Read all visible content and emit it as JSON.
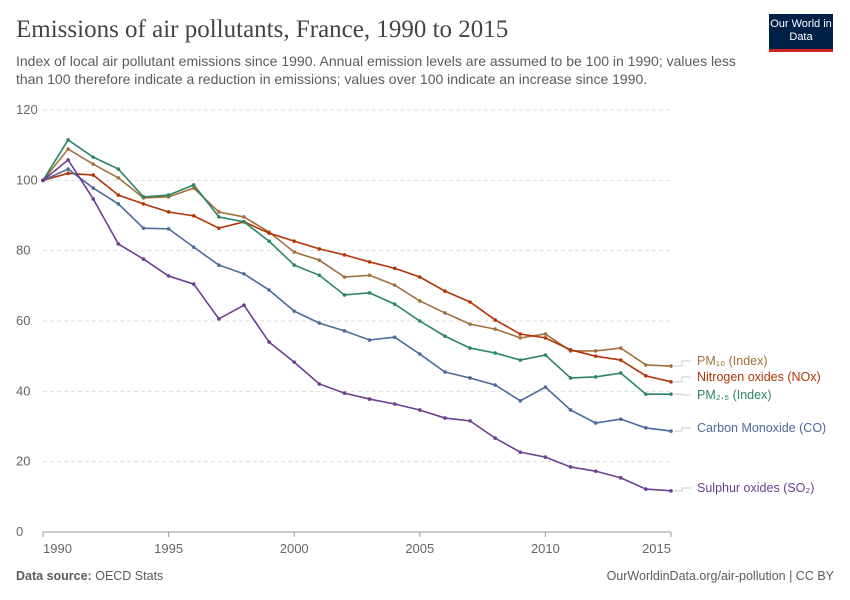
{
  "header": {
    "title": "Emissions of air pollutants, France, 1990 to 2015",
    "subtitle": "Index of local air pollutant emissions since 1990. Annual emission levels are assumed to be 100 in 1990; values less than 100 therefore indicate a reduction in emissions; values over 100 indicate an increase since 1990.",
    "logo": "Our World in Data"
  },
  "footer": {
    "source_label": "Data source:",
    "source": "OECD Stats",
    "credit": "OurWorldinData.org/air-pollution | CC BY"
  },
  "chart_data": {
    "type": "line",
    "x": [
      1990,
      1991,
      1992,
      1993,
      1994,
      1995,
      1996,
      1997,
      1998,
      1999,
      2000,
      2001,
      2002,
      2003,
      2004,
      2005,
      2006,
      2007,
      2008,
      2009,
      2010,
      2011,
      2012,
      2013,
      2014,
      2015
    ],
    "xlim": [
      1990,
      2015
    ],
    "ylim": [
      0,
      120
    ],
    "xticks": [
      1990,
      1995,
      2000,
      2005,
      2010,
      2015
    ],
    "yticks": [
      0,
      20,
      40,
      60,
      80,
      100,
      120
    ],
    "grid": "horizontal dashed",
    "legend": "right, end-of-line labels",
    "series": [
      {
        "name": "PM₁₀ (Index)",
        "color": "#a2703c",
        "values": [
          100,
          108.9,
          104.6,
          100.7,
          95,
          95.3,
          97.8,
          91,
          89.6,
          85.3,
          79.6,
          77.3,
          72.5,
          73,
          70.2,
          65.7,
          62.3,
          59.1,
          57.7,
          55.2,
          56.3,
          51.5,
          51.5,
          52.3,
          47.5,
          47.2
        ]
      },
      {
        "name": "Nitrogen oxides (NOx)",
        "color": "#b13507",
        "values": [
          100,
          102,
          101.5,
          95.8,
          93.3,
          91,
          89.9,
          86.4,
          88.2,
          85,
          82.7,
          80.5,
          78.8,
          76.8,
          75,
          72.5,
          68.5,
          65.4,
          60.3,
          56.3,
          55.2,
          51.8,
          50,
          48.9,
          44.4,
          42.7
        ]
      },
      {
        "name": "PM₂.₅ (Index)",
        "color": "#2c8465",
        "values": [
          100,
          111.5,
          106.6,
          103.2,
          95.3,
          95.8,
          98.7,
          89.6,
          88.2,
          82.7,
          75.9,
          73,
          67.4,
          68,
          64.8,
          60,
          55.7,
          52.3,
          50.9,
          48.9,
          50.3,
          43.8,
          44.1,
          45.2,
          39.2,
          39.2
        ]
      },
      {
        "name": "Carbon Monoxide (CO)",
        "color": "#4c6a9c",
        "values": [
          100,
          103.2,
          97.8,
          93.3,
          86.4,
          86.2,
          81,
          75.9,
          73.4,
          68.8,
          62.8,
          59.4,
          57.2,
          54.6,
          55.4,
          50.6,
          45.5,
          43.8,
          41.8,
          37.3,
          41.2,
          34.7,
          31,
          32.1,
          29.6,
          28.7
        ]
      },
      {
        "name": "Sulphur oxides (SO₂)",
        "color": "#6d3e91",
        "values": [
          100,
          105.8,
          94.7,
          81.9,
          77.6,
          72.8,
          70.5,
          60.6,
          64.5,
          54,
          48.3,
          42.1,
          39.5,
          37.8,
          36.4,
          34.7,
          32.4,
          31.6,
          26.7,
          22.7,
          21.3,
          18.5,
          17.3,
          15.4,
          12.2,
          11.7
        ]
      }
    ]
  }
}
